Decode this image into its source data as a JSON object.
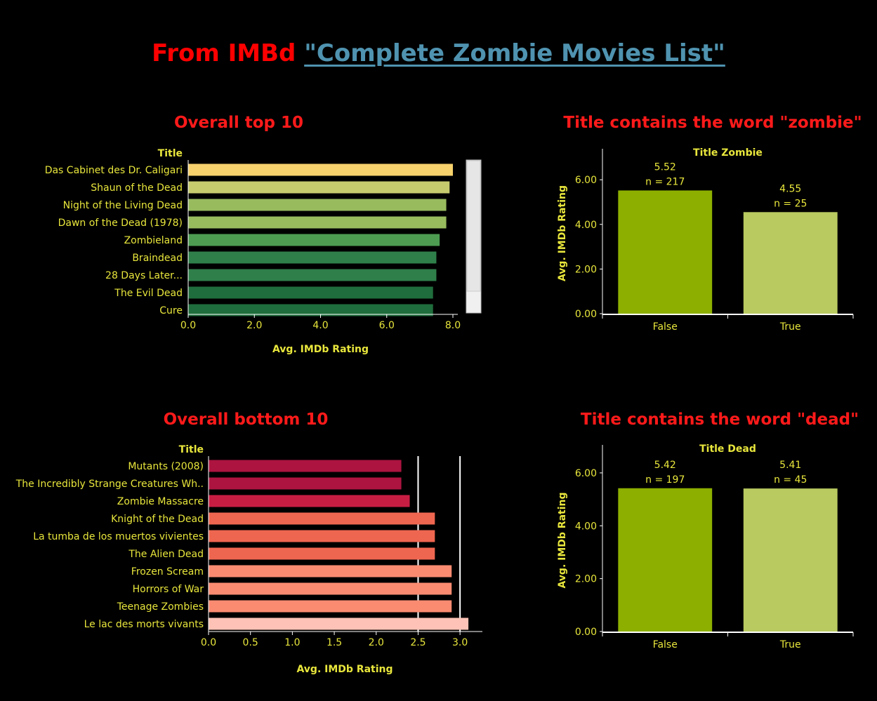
{
  "header": {
    "title_prefix": "From IMBd",
    "title_link": "\"Complete Zombie Movies List\""
  },
  "colors": {
    "background": "#000000",
    "text": "#e8e63c",
    "title_red": "#ff0000",
    "link_blue": "#4f93b0"
  },
  "chart_data": [
    {
      "id": "top10",
      "type": "bar",
      "orientation": "horizontal",
      "title": "Overall top 10",
      "category_header": "Title",
      "xlabel": "Avg. IMDb Rating",
      "categories": [
        "Das Cabinet des Dr. Caligari",
        "Shaun of the Dead",
        "Night of the Living Dead",
        "Dawn of the Dead (1978)",
        "Zombieland",
        "Braindead",
        "28 Days Later...",
        "The Evil Dead",
        "Cure"
      ],
      "values": [
        8.0,
        7.9,
        7.8,
        7.8,
        7.6,
        7.5,
        7.5,
        7.4,
        7.4
      ],
      "colors": [
        "#f7d26d",
        "#c6cb6e",
        "#98bb5e",
        "#98bb5e",
        "#4d9c52",
        "#2f7f4a",
        "#2f7f4a",
        "#1f6d3c",
        "#1f6d3c"
      ],
      "xlim": [
        0,
        8.0
      ],
      "xticks": [
        "0.0",
        "2.0",
        "4.0",
        "6.0",
        "8.0"
      ],
      "has_scrollbar": true
    },
    {
      "id": "bottom10",
      "type": "bar",
      "orientation": "horizontal",
      "title": "Overall bottom 10",
      "category_header": "Title",
      "xlabel": "Avg. IMDb Rating",
      "categories": [
        "Mutants (2008)",
        "The Incredibly Strange Creatures Wh..",
        "Zombie Massacre",
        "Knight of the Dead",
        "La tumba de los muertos vivientes",
        "The Alien Dead",
        "Frozen Scream",
        "Horrors of War",
        "Teenage Zombies",
        "Le lac des morts vivants"
      ],
      "values": [
        2.3,
        2.3,
        2.4,
        2.7,
        2.7,
        2.7,
        2.9,
        2.9,
        2.9,
        3.1
      ],
      "colors": [
        "#ad1440",
        "#ad1440",
        "#c81d43",
        "#ef6650",
        "#ef6650",
        "#ef6650",
        "#fa8b71",
        "#fa8b71",
        "#fa8b71",
        "#fec3b6"
      ],
      "xlim": [
        0,
        3.25
      ],
      "xticks": [
        "0.0",
        "0.5",
        "1.0",
        "1.5",
        "2.0",
        "2.5",
        "3.0"
      ],
      "reference_lines": [
        2.5,
        3.0
      ]
    },
    {
      "id": "zombie",
      "type": "bar",
      "title": "Title contains the word \"zombie\"",
      "column_header": "Title Zombie",
      "ylabel": "Avg. IMDb Rating",
      "categories": [
        "False",
        "True"
      ],
      "values": [
        5.52,
        4.55
      ],
      "value_labels": [
        "5.52",
        "4.55"
      ],
      "count_labels": [
        "n = 217",
        "n = 25"
      ],
      "colors": [
        "#8db000",
        "#b9ca60"
      ],
      "ylim": [
        0,
        7.2
      ],
      "yticks": [
        "0.00",
        "2.00",
        "4.00",
        "6.00"
      ]
    },
    {
      "id": "dead",
      "type": "bar",
      "title": "Title contains the word \"dead\"",
      "column_header": "Title Dead",
      "ylabel": "Avg. IMDb Rating",
      "categories": [
        "False",
        "True"
      ],
      "values": [
        5.42,
        5.41
      ],
      "value_labels": [
        "5.42",
        "5.41"
      ],
      "count_labels": [
        "n = 197",
        "n = 45"
      ],
      "colors": [
        "#8db000",
        "#b9ca60"
      ],
      "ylim": [
        0,
        6.9
      ],
      "yticks": [
        "0.00",
        "2.00",
        "4.00",
        "6.00"
      ]
    }
  ]
}
